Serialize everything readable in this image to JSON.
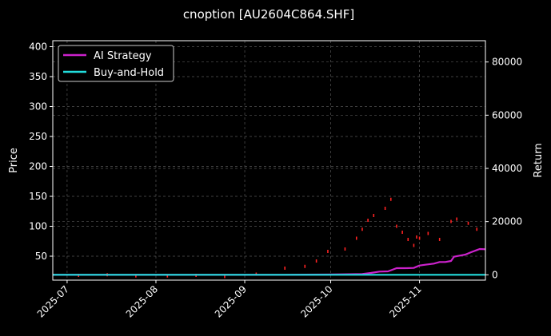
{
  "chart_data": {
    "type": "line",
    "title": "cnoption [AU2604C864.SHF]",
    "xlabel": "",
    "ylabel": "Price",
    "y2label": "Return",
    "x_range": [
      "2025-06-26",
      "2025-11-24"
    ],
    "ylim": [
      10,
      410
    ],
    "y2lim": [
      -2000,
      88000
    ],
    "x_ticks": [
      "2025-07",
      "2025-08",
      "2025-09",
      "2025-10",
      "2025-11"
    ],
    "y_ticks": [
      50,
      100,
      150,
      200,
      250,
      300,
      350,
      400
    ],
    "y2_ticks": [
      0,
      20000,
      40000,
      60000,
      80000
    ],
    "grid": true,
    "legend_position": "top-left",
    "colors": {
      "background": "#000000",
      "ai_strategy": "#cc22cc",
      "buy_and_hold": "#22dddd",
      "candles": "#ff2222",
      "grid": "#555555"
    },
    "series": [
      {
        "name": "AI Strategy",
        "axis": "right",
        "points": [
          [
            "2025-06-26",
            0
          ],
          [
            "2025-08-15",
            0
          ],
          [
            "2025-09-15",
            0
          ],
          [
            "2025-09-30",
            100
          ],
          [
            "2025-10-05",
            200
          ],
          [
            "2025-10-12",
            300
          ],
          [
            "2025-10-15",
            700
          ],
          [
            "2025-10-18",
            1200
          ],
          [
            "2025-10-21",
            1300
          ],
          [
            "2025-10-24",
            2500
          ],
          [
            "2025-10-27",
            2500
          ],
          [
            "2025-10-30",
            2600
          ],
          [
            "2025-11-01",
            3500
          ],
          [
            "2025-11-03",
            3800
          ],
          [
            "2025-11-06",
            4200
          ],
          [
            "2025-11-08",
            4800
          ],
          [
            "2025-11-10",
            4800
          ],
          [
            "2025-11-12",
            5200
          ],
          [
            "2025-11-13",
            6800
          ],
          [
            "2025-11-15",
            7200
          ],
          [
            "2025-11-17",
            7600
          ],
          [
            "2025-11-19",
            8500
          ],
          [
            "2025-11-21",
            9300
          ],
          [
            "2025-11-22",
            9700
          ],
          [
            "2025-11-24",
            9600
          ]
        ]
      },
      {
        "name": "Buy-and-Hold",
        "axis": "right",
        "points": [
          [
            "2025-06-26",
            0
          ],
          [
            "2025-11-24",
            0
          ]
        ]
      }
    ],
    "price_marks": [
      [
        "2025-07-05",
        18
      ],
      [
        "2025-07-15",
        19
      ],
      [
        "2025-07-25",
        17
      ],
      [
        "2025-08-05",
        17
      ],
      [
        "2025-08-15",
        18
      ],
      [
        "2025-08-25",
        16
      ],
      [
        "2025-09-05",
        20
      ],
      [
        "2025-09-15",
        30
      ],
      [
        "2025-09-22",
        33
      ],
      [
        "2025-09-26",
        42
      ],
      [
        "2025-09-30",
        58
      ],
      [
        "2025-10-06",
        62
      ],
      [
        "2025-10-10",
        80
      ],
      [
        "2025-10-12",
        95
      ],
      [
        "2025-10-14",
        110
      ],
      [
        "2025-10-16",
        118
      ],
      [
        "2025-10-20",
        130
      ],
      [
        "2025-10-22",
        145
      ],
      [
        "2025-10-24",
        100
      ],
      [
        "2025-10-26",
        90
      ],
      [
        "2025-10-28",
        78
      ],
      [
        "2025-10-30",
        68
      ],
      [
        "2025-10-31",
        82
      ],
      [
        "2025-11-01",
        80
      ],
      [
        "2025-11-04",
        88
      ],
      [
        "2025-11-08",
        78
      ],
      [
        "2025-11-12",
        108
      ],
      [
        "2025-11-14",
        112
      ],
      [
        "2025-11-18",
        105
      ],
      [
        "2025-11-21",
        95
      ]
    ]
  }
}
